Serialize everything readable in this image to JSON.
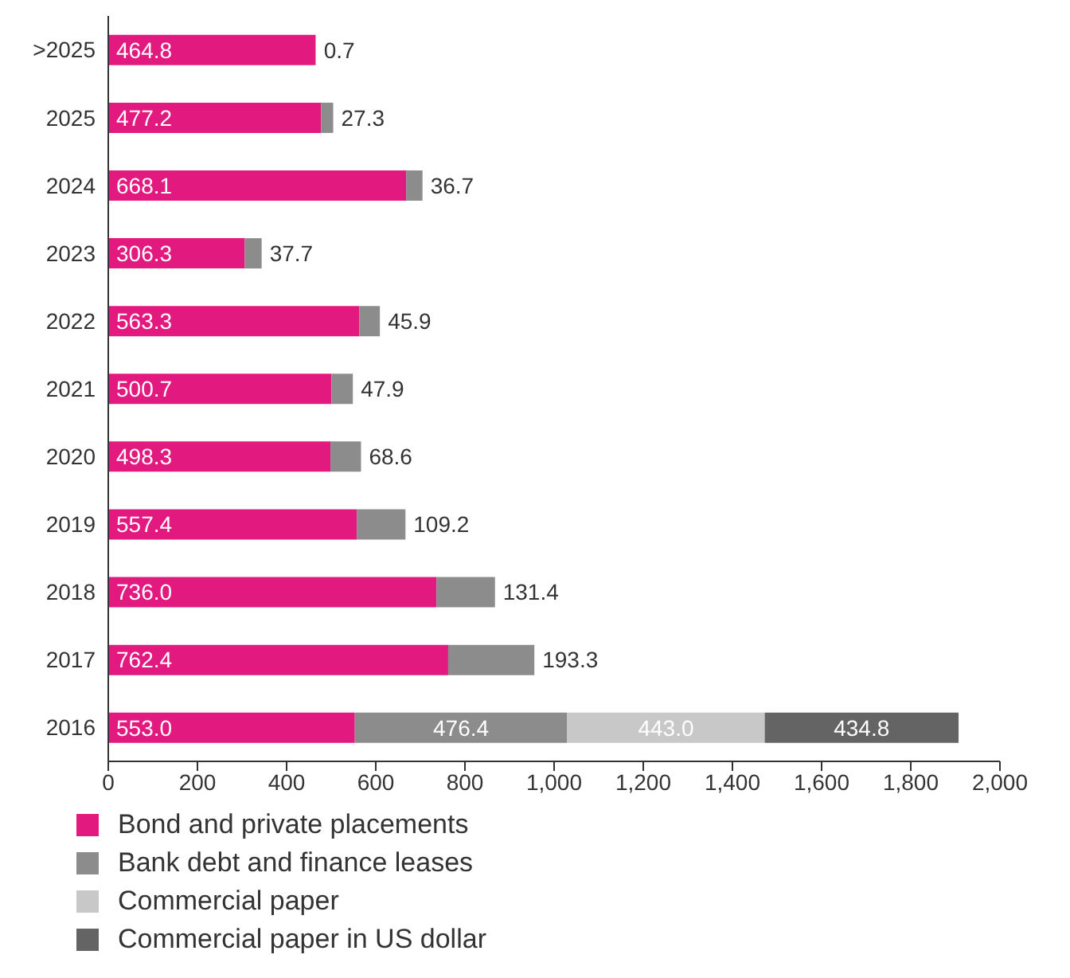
{
  "chart_data": {
    "type": "bar",
    "orientation": "horizontal",
    "stacked": true,
    "categories": [
      ">2025",
      "2025",
      "2024",
      "2023",
      "2022",
      "2021",
      "2020",
      "2019",
      "2018",
      "2017",
      "2016"
    ],
    "series": [
      {
        "name": "Bond and private placements",
        "color": "#e2197f",
        "values": [
          464.8,
          477.2,
          668.1,
          306.3,
          563.3,
          500.7,
          498.3,
          557.4,
          736.0,
          762.4,
          553.0
        ],
        "value_labels": [
          "464.8",
          "477.2",
          "668.1",
          "306.3",
          "563.3",
          "500.7",
          "498.3",
          "557.4",
          "736.0",
          "762.4",
          "553.0"
        ]
      },
      {
        "name": "Bank debt and finance leases",
        "color": "#8c8c8c",
        "values": [
          0.7,
          27.3,
          36.7,
          37.7,
          45.9,
          47.9,
          68.6,
          109.2,
          131.4,
          193.3,
          476.4
        ],
        "value_labels": [
          "0.7",
          "27.3",
          "36.7",
          "37.7",
          "45.9",
          "47.9",
          "68.6",
          "109.2",
          "131.4",
          "193.3",
          "476.4"
        ]
      },
      {
        "name": "Commercial paper",
        "color": "#c8c8c8",
        "values": [
          null,
          null,
          null,
          null,
          null,
          null,
          null,
          null,
          null,
          null,
          443.0
        ],
        "value_labels": [
          null,
          null,
          null,
          null,
          null,
          null,
          null,
          null,
          null,
          null,
          "443.0"
        ]
      },
      {
        "name": "Commercial paper in US dollar",
        "color": "#646464",
        "values": [
          null,
          null,
          null,
          null,
          null,
          null,
          null,
          null,
          null,
          null,
          434.8
        ],
        "value_labels": [
          null,
          null,
          null,
          null,
          null,
          null,
          null,
          null,
          null,
          null,
          "434.8"
        ]
      }
    ],
    "xlim": [
      0,
      2000
    ],
    "xticks": [
      0,
      200,
      400,
      600,
      800,
      {
        "value": 1000,
        "label": "1,000"
      },
      {
        "value": 1200,
        "label": "1,200"
      },
      {
        "value": 1400,
        "label": "1,400"
      },
      {
        "value": 1600,
        "label": "1,600"
      },
      {
        "value": 1800,
        "label": "1,800"
      },
      {
        "value": 2000,
        "label": "2,000"
      }
    ],
    "grid": false,
    "legend": "bottom"
  }
}
